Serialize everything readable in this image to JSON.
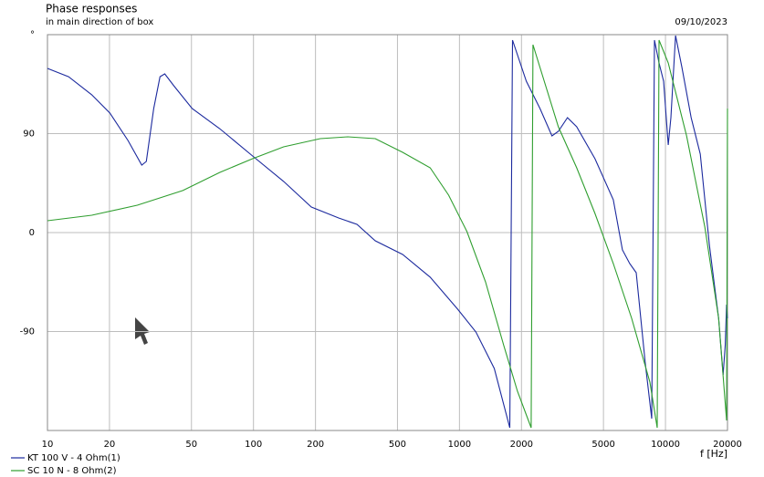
{
  "chart_data": {
    "type": "line",
    "title": "Phase responses",
    "subtitle": "in main direction of box",
    "date": "09/10/2023",
    "x_label": "f [Hz]",
    "x_scale": "log",
    "grid": true,
    "xlim": [
      10,
      20000
    ],
    "xticks": [
      10,
      20,
      50,
      100,
      200,
      500,
      1000,
      2000,
      5000,
      10000,
      20000
    ],
    "ylim": [
      -180,
      180
    ],
    "yticks": [
      {
        "value": 180,
        "label": "°"
      },
      90,
      0,
      -90
    ],
    "series": [
      {
        "name": "KT 100 V - 4 Ohm(1)",
        "color": "#1c2a9e",
        "x": [
          10,
          12.66,
          16.4,
          20.1,
          24.6,
          28.7,
          30.2,
          32.8,
          35.2,
          37.1,
          41.1,
          50.4,
          68.5,
          99,
          140,
          191,
          259,
          318,
          390,
          530,
          721,
          980,
          1202,
          1475,
          1755,
          1810,
          2110,
          2461,
          2811,
          3020,
          3345,
          3706,
          4548,
          5580,
          6181,
          6709,
          7207,
          7984,
          8578,
          8846,
          9309,
          9795,
          10310,
          10630,
          11190,
          12020,
          13320,
          14760,
          16350,
          18110,
          19050,
          19500,
          19800,
          20000
        ],
        "values": [
          149.3,
          141.8,
          125.3,
          108.7,
          83.8,
          61.4,
          64.7,
          112.8,
          141.8,
          144.3,
          133.5,
          112.8,
          94.6,
          69.7,
          46.5,
          23.2,
          13.3,
          7.5,
          -7.5,
          -19.9,
          -40.6,
          -69.7,
          -90.4,
          -123.6,
          -177.5,
          175.0,
          137.7,
          112.8,
          87.9,
          92.1,
          104.5,
          96.2,
          67.2,
          29.9,
          -15.8,
          -28.2,
          -36.5,
          -119.4,
          -169.2,
          175.0,
          154.3,
          137.7,
          79.6,
          104.5,
          179.2,
          150.1,
          104.5,
          71.3,
          -11.6,
          -78.0,
          -129.4,
          -102.9,
          -65.5,
          -78.0
        ]
      },
      {
        "name": "SC 10 N - 8 Ohm(2)",
        "color": "#2f9e2f",
        "x": [
          10,
          16.4,
          27.3,
          45.4,
          68.5,
          99,
          140,
          211,
          287,
          390,
          530,
          721,
          886,
          1088,
          1338,
          1643,
          1912,
          2227,
          2274,
          2461,
          3020,
          3706,
          4548,
          5580,
          6849,
          8405,
          9120,
          9309,
          10310,
          12660,
          15530,
          18110,
          19800,
          20000
        ],
        "values": [
          10.8,
          15.8,
          24.9,
          38.2,
          54.7,
          67.2,
          78.0,
          85.4,
          87.1,
          85.4,
          73.0,
          58.9,
          34.0,
          0.8,
          -44.8,
          -102.9,
          -144.3,
          -177.5,
          170.9,
          150.1,
          96.2,
          58.9,
          17.4,
          -28.2,
          -78.0,
          -136.0,
          -177.5,
          175.0,
          154.3,
          87.9,
          5.0,
          -78.0,
          -170.9,
          112.8
        ]
      }
    ]
  }
}
